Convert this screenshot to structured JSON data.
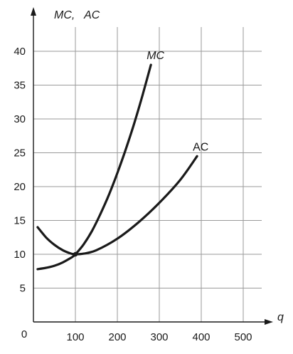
{
  "chart_data": {
    "type": "line",
    "ylabel": "MC,   AC",
    "xlabel": "q",
    "origin_label": "0",
    "xlim": [
      0,
      550
    ],
    "ylim": [
      0,
      45
    ],
    "x_ticks": [
      100,
      200,
      300,
      400,
      500
    ],
    "y_ticks": [
      5,
      10,
      15,
      20,
      25,
      30,
      35,
      40
    ],
    "grid": true,
    "series": [
      {
        "name": "MC",
        "label_style": "italic",
        "x": [
          10,
          30,
          50,
          70,
          90,
          100,
          120,
          140,
          160,
          180,
          200,
          220,
          240,
          260,
          280
        ],
        "y": [
          7.8,
          8.0,
          8.3,
          8.8,
          9.5,
          10.0,
          11.5,
          13.5,
          16.0,
          18.8,
          22.0,
          25.5,
          29.3,
          33.5,
          38.0
        ]
      },
      {
        "name": "AC",
        "label_style": "normal",
        "x": [
          10,
          30,
          50,
          70,
          90,
          100,
          120,
          150,
          200,
          250,
          300,
          350,
          390
        ],
        "y": [
          14.0,
          12.5,
          11.4,
          10.6,
          10.1,
          10.0,
          10.1,
          10.6,
          12.3,
          14.7,
          17.6,
          21.0,
          24.5
        ]
      }
    ]
  }
}
